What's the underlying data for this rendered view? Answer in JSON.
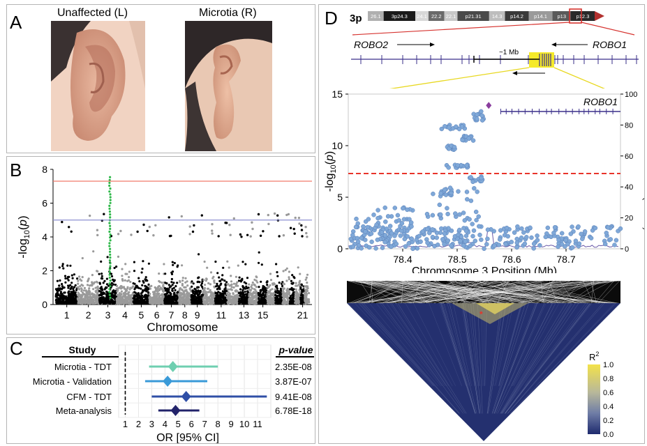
{
  "panels": {
    "a": "A",
    "b": "B",
    "c": "C",
    "d": "D"
  },
  "panel_a": {
    "left_caption": "Unaffected (L)",
    "right_caption": "Microtia (R)"
  },
  "colors": {
    "manhattan_dark": "#000000",
    "manhattan_light": "#9a9a9a",
    "significant": "#2fb84a",
    "genome_wide_line": "#f07a6a",
    "suggestive_line": "#8d8fd0",
    "tdt": "#6fcfb0",
    "validation": "#3a9ad8",
    "cfm": "#2f4fa6",
    "meta": "#22236a",
    "locus_point": "#7fa8d8",
    "locus_threshold": "#e8342a",
    "recomb_line": "#6a5aa8",
    "gene_line": "#3a2f8a",
    "highlight_box": "#f5ea2a"
  },
  "chart_data": [
    {
      "panel": "B",
      "type": "scatter",
      "title": "",
      "xlabel": "Chromosome",
      "ylabel": "-log10(p)",
      "ylim": [
        0,
        8
      ],
      "yticks": [
        "0",
        "2",
        "4",
        "6",
        "8"
      ],
      "x_tick_labels": [
        "1",
        "2",
        "3",
        "4",
        "5",
        "6",
        "7",
        "8",
        "9",
        "11",
        "13",
        "15",
        "21"
      ],
      "chromosomes": [
        "1",
        "2",
        "3",
        "4",
        "5",
        "6",
        "7",
        "8",
        "9",
        "10",
        "11",
        "12",
        "13",
        "14",
        "15",
        "16",
        "17",
        "18",
        "19",
        "20",
        "21",
        "22"
      ],
      "genome_wide_threshold": 7.3,
      "suggestive_threshold": 5.0,
      "peak_chromosome": "3",
      "peak_value": 7.6,
      "grid": false
    },
    {
      "panel": "C",
      "type": "forest",
      "xlabel": "OR [95% CI]",
      "xlim": [
        0.5,
        12
      ],
      "xticks": [
        "1",
        "2",
        "3",
        "4",
        "5",
        "6",
        "7",
        "8",
        "9",
        "10",
        "11"
      ],
      "reference_line": 1,
      "header_study": "Study",
      "header_p": "p-value",
      "rows": [
        {
          "study": "Microtia - TDT",
          "or": 4.6,
          "lo": 2.8,
          "hi": 8.0,
          "p": "2.35E-08",
          "color": "#6fcfb0"
        },
        {
          "study": "Microtia - Validation",
          "or": 4.2,
          "lo": 2.5,
          "hi": 7.2,
          "p": "3.87E-07",
          "color": "#3a9ad8"
        },
        {
          "study": "CFM - TDT",
          "or": 5.6,
          "lo": 3.0,
          "hi": 11.7,
          "p": "9.41E-08",
          "color": "#2f4fa6"
        },
        {
          "study": "Meta-analysis",
          "or": 4.8,
          "lo": 3.5,
          "hi": 6.6,
          "p": "6.78E-18",
          "color": "#22236a"
        }
      ],
      "grid": true
    },
    {
      "panel": "D",
      "type": "scatter",
      "xlabel": "Chromosome 3 Position (Mb)",
      "ylabel": "-log10(p)",
      "ylabel_right": "Recombination Rate (cM/Mb)",
      "xlim": [
        78.3,
        78.8
      ],
      "xticks": [
        "78.4",
        "78.5",
        "78.6",
        "78.7"
      ],
      "ylim": [
        0,
        15
      ],
      "yticks": [
        "0",
        "5",
        "10",
        "15"
      ],
      "ylim_right": [
        0,
        100
      ],
      "yticks_right": [
        "0",
        "20",
        "40",
        "60",
        "80",
        "100"
      ],
      "threshold": 7.3,
      "lead_snp": {
        "x": 78.558,
        "y": 13.9
      },
      "gene_label": "ROBO1",
      "grid": false
    },
    {
      "panel": "D-LD",
      "type": "heatmap",
      "legend_title": "R",
      "legend_superscript": "2",
      "legend_ticks": [
        "1.0",
        "0.8",
        "0.6",
        "0.4",
        "0.2",
        "0.0"
      ],
      "colorscale": [
        "#1e2a6e",
        "#6f7da6",
        "#b8b89a",
        "#f3e24a"
      ]
    }
  ],
  "ideogram": {
    "chrom": "3p",
    "bands": [
      "26.1",
      "3p24.3",
      "24.1",
      "22.2",
      "22.1",
      "p21.31",
      "14.3",
      "p14.2",
      "p14.1",
      "p13",
      "p12.3"
    ],
    "gene_left": "ROBO2",
    "gene_right": "ROBO1",
    "distance": "~1 Mb"
  }
}
